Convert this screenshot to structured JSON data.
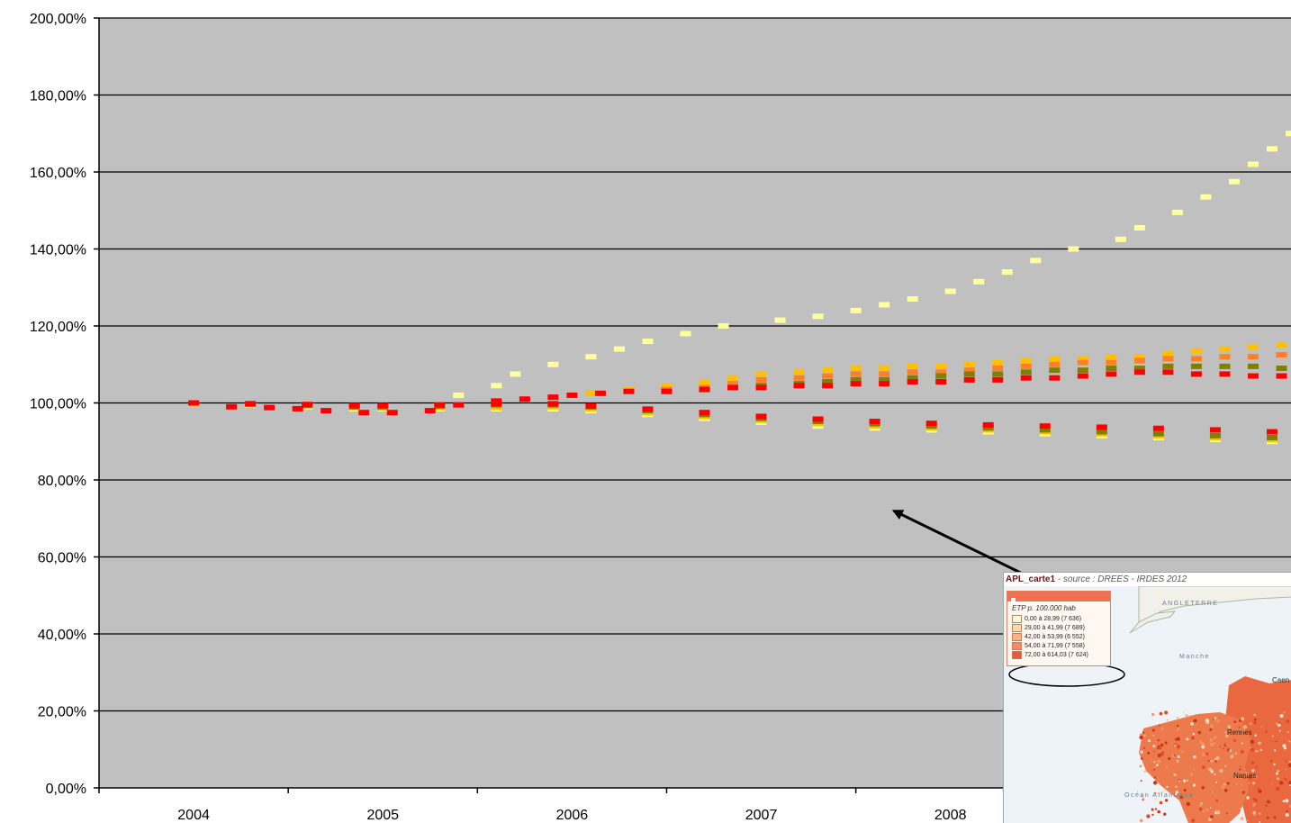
{
  "chart_data": {
    "type": "scatter",
    "title": "",
    "xlabel": "",
    "ylabel": "",
    "x_range": [
      2003.5,
      2009.8
    ],
    "ylim": [
      0,
      200
    ],
    "y_ticks": [
      0,
      20,
      40,
      60,
      80,
      100,
      120,
      140,
      160,
      180,
      200
    ],
    "y_tick_labels": [
      "0,00%",
      "20,00%",
      "40,00%",
      "60,00%",
      "80,00%",
      "100,00%",
      "120,00%",
      "140,00%",
      "160,00%",
      "180,00%",
      "200,00%"
    ],
    "x_tick_labels": [
      "2004",
      "2005",
      "2006",
      "2007",
      "2008"
    ],
    "x_tick_values": [
      2004,
      2005,
      2006,
      2007,
      2008
    ],
    "grid": "horizontal",
    "plot_background": "#c0c0c0",
    "series": [
      {
        "color": "#ffffa0",
        "points": [
          [
            2005.4,
            102
          ],
          [
            2005.6,
            104.5
          ],
          [
            2005.7,
            107.5
          ],
          [
            2005.9,
            110
          ],
          [
            2006.1,
            112
          ],
          [
            2006.25,
            114
          ],
          [
            2006.4,
            116
          ],
          [
            2006.6,
            118
          ],
          [
            2006.8,
            120
          ],
          [
            2007.1,
            121.5
          ],
          [
            2007.3,
            122.5
          ],
          [
            2007.5,
            124
          ],
          [
            2007.65,
            125.5
          ],
          [
            2007.8,
            127
          ],
          [
            2008.0,
            129
          ],
          [
            2008.15,
            131.5
          ],
          [
            2008.3,
            134
          ],
          [
            2008.45,
            137
          ],
          [
            2008.65,
            140
          ],
          [
            2008.9,
            142.5
          ],
          [
            2009.0,
            145.5
          ],
          [
            2009.2,
            149.5
          ],
          [
            2009.35,
            153.5
          ],
          [
            2009.5,
            157.5
          ],
          [
            2009.6,
            162
          ],
          [
            2009.7,
            166
          ],
          [
            2009.8,
            170
          ],
          [
            2009.95,
            173.5
          ]
        ]
      },
      {
        "color": "#ffc000",
        "points": [
          [
            2006.1,
            102.5
          ],
          [
            2006.3,
            103.5
          ],
          [
            2006.5,
            104.5
          ],
          [
            2006.7,
            105.5
          ],
          [
            2006.85,
            106.5
          ],
          [
            2007.0,
            107.5
          ],
          [
            2007.2,
            108
          ],
          [
            2007.35,
            108.5
          ],
          [
            2007.5,
            109
          ],
          [
            2007.65,
            109
          ],
          [
            2007.8,
            109.5
          ],
          [
            2007.95,
            109.5
          ],
          [
            2008.1,
            110
          ],
          [
            2008.25,
            110.5
          ],
          [
            2008.4,
            111
          ],
          [
            2008.55,
            111.5
          ],
          [
            2008.7,
            111.5
          ],
          [
            2008.85,
            112
          ],
          [
            2009.0,
            112
          ],
          [
            2009.15,
            113
          ],
          [
            2009.3,
            113.5
          ],
          [
            2009.45,
            114
          ],
          [
            2009.6,
            114.5
          ],
          [
            2009.75,
            115
          ],
          [
            2009.95,
            115.5
          ]
        ]
      },
      {
        "color": "#ff7f27",
        "points": [
          [
            2006.3,
            103
          ],
          [
            2006.5,
            103.5
          ],
          [
            2006.7,
            104
          ],
          [
            2006.85,
            105
          ],
          [
            2007.0,
            106
          ],
          [
            2007.2,
            106.5
          ],
          [
            2007.35,
            107
          ],
          [
            2007.5,
            107.5
          ],
          [
            2007.65,
            107.5
          ],
          [
            2007.8,
            108
          ],
          [
            2007.95,
            108
          ],
          [
            2008.1,
            108.5
          ],
          [
            2008.25,
            109
          ],
          [
            2008.4,
            109.5
          ],
          [
            2008.55,
            110
          ],
          [
            2008.7,
            110.5
          ],
          [
            2008.85,
            110.5
          ],
          [
            2009.0,
            111
          ],
          [
            2009.15,
            111.5
          ],
          [
            2009.3,
            111.5
          ],
          [
            2009.45,
            112
          ],
          [
            2009.6,
            112
          ],
          [
            2009.75,
            112.5
          ],
          [
            2009.95,
            112.5
          ]
        ]
      },
      {
        "color": "#808000",
        "points": [
          [
            2006.5,
            103
          ],
          [
            2006.7,
            103.5
          ],
          [
            2006.85,
            104
          ],
          [
            2007.0,
            104.5
          ],
          [
            2007.2,
            105
          ],
          [
            2007.35,
            105.5
          ],
          [
            2007.5,
            106
          ],
          [
            2007.65,
            106
          ],
          [
            2007.8,
            106.5
          ],
          [
            2007.95,
            107
          ],
          [
            2008.1,
            107.5
          ],
          [
            2008.25,
            107.5
          ],
          [
            2008.4,
            108
          ],
          [
            2008.55,
            108.5
          ],
          [
            2008.7,
            108.5
          ],
          [
            2008.85,
            109
          ],
          [
            2009.0,
            109
          ],
          [
            2009.15,
            109.5
          ],
          [
            2009.3,
            109.5
          ],
          [
            2009.45,
            109.5
          ],
          [
            2009.6,
            109.5
          ],
          [
            2009.75,
            109
          ],
          [
            2009.95,
            109
          ]
        ]
      },
      {
        "color": "#ff0000",
        "points": [
          [
            2006.0,
            102
          ],
          [
            2006.15,
            102.5
          ],
          [
            2006.3,
            103
          ],
          [
            2006.5,
            103
          ],
          [
            2006.7,
            103.5
          ],
          [
            2006.85,
            104
          ],
          [
            2007.0,
            104
          ],
          [
            2007.2,
            104.5
          ],
          [
            2007.35,
            104.5
          ],
          [
            2007.5,
            105
          ],
          [
            2007.65,
            105
          ],
          [
            2007.8,
            105.5
          ],
          [
            2007.95,
            105.5
          ],
          [
            2008.1,
            106
          ],
          [
            2008.25,
            106
          ],
          [
            2008.4,
            106.5
          ],
          [
            2008.55,
            106.5
          ],
          [
            2008.7,
            107
          ],
          [
            2008.85,
            107.5
          ],
          [
            2009.0,
            108
          ],
          [
            2009.15,
            108
          ],
          [
            2009.3,
            107.5
          ],
          [
            2009.45,
            107.5
          ],
          [
            2009.6,
            107
          ],
          [
            2009.75,
            107
          ],
          [
            2009.95,
            107
          ]
        ]
      },
      {
        "color": "#ffff80",
        "points": [
          [
            2004.0,
            99.8
          ],
          [
            2004.3,
            99.5
          ],
          [
            2004.6,
            99
          ],
          [
            2004.85,
            98.5
          ],
          [
            2005.0,
            98.5
          ],
          [
            2005.3,
            98.5
          ],
          [
            2005.6,
            98.5
          ],
          [
            2005.9,
            98.5
          ],
          [
            2006.1,
            98
          ],
          [
            2006.4,
            97
          ],
          [
            2006.7,
            96
          ],
          [
            2007.0,
            95
          ],
          [
            2007.3,
            94
          ],
          [
            2007.6,
            93.5
          ],
          [
            2007.9,
            93
          ],
          [
            2008.2,
            92.5
          ],
          [
            2008.5,
            92
          ],
          [
            2008.8,
            91.5
          ],
          [
            2009.1,
            91
          ],
          [
            2009.4,
            90.5
          ],
          [
            2009.7,
            90
          ],
          [
            2009.95,
            89.5
          ]
        ]
      },
      {
        "color": "#ffc000",
        "points": [
          [
            2004.0,
            99.9
          ],
          [
            2004.3,
            99.6
          ],
          [
            2004.6,
            99.2
          ],
          [
            2004.85,
            98.8
          ],
          [
            2005.0,
            98.7
          ],
          [
            2005.3,
            98.8
          ],
          [
            2005.6,
            98.9
          ],
          [
            2005.9,
            99
          ],
          [
            2006.1,
            98.5
          ],
          [
            2006.4,
            97.5
          ],
          [
            2006.7,
            96.5
          ],
          [
            2007.0,
            95.5
          ],
          [
            2007.3,
            94.7
          ],
          [
            2007.6,
            94
          ],
          [
            2007.9,
            93.5
          ],
          [
            2008.2,
            93
          ],
          [
            2008.5,
            92.5
          ],
          [
            2008.8,
            92
          ],
          [
            2009.1,
            91.5
          ],
          [
            2009.4,
            91
          ],
          [
            2009.7,
            90.5
          ],
          [
            2009.95,
            90
          ]
        ]
      },
      {
        "color": "#808000",
        "points": [
          [
            2004.0,
            100
          ],
          [
            2004.3,
            99.7
          ],
          [
            2004.6,
            99.4
          ],
          [
            2004.85,
            99
          ],
          [
            2005.0,
            99
          ],
          [
            2005.3,
            99.2
          ],
          [
            2005.6,
            99.5
          ],
          [
            2005.9,
            99.5
          ],
          [
            2006.1,
            99
          ],
          [
            2006.4,
            98
          ],
          [
            2006.7,
            97
          ],
          [
            2007.0,
            96
          ],
          [
            2007.3,
            95.2
          ],
          [
            2007.6,
            94.6
          ],
          [
            2007.9,
            94
          ],
          [
            2008.2,
            93.5
          ],
          [
            2008.5,
            93
          ],
          [
            2008.8,
            92.5
          ],
          [
            2009.1,
            92
          ],
          [
            2009.4,
            91.5
          ],
          [
            2009.7,
            91
          ],
          [
            2009.95,
            90.5
          ]
        ]
      },
      {
        "color": "#ff0000",
        "points": [
          [
            2004.0,
            100
          ],
          [
            2004.3,
            99.8
          ],
          [
            2004.6,
            99.6
          ],
          [
            2004.85,
            99.3
          ],
          [
            2005.0,
            99.3
          ],
          [
            2005.3,
            99.5
          ],
          [
            2005.6,
            99.8
          ],
          [
            2005.9,
            99.8
          ],
          [
            2006.1,
            99.2
          ],
          [
            2006.4,
            98.4
          ],
          [
            2006.7,
            97.5
          ],
          [
            2007.0,
            96.5
          ],
          [
            2007.3,
            95.8
          ],
          [
            2007.6,
            95.2
          ],
          [
            2007.9,
            94.7
          ],
          [
            2008.2,
            94.3
          ],
          [
            2008.5,
            94
          ],
          [
            2008.8,
            93.7
          ],
          [
            2009.1,
            93.4
          ],
          [
            2009.4,
            93
          ],
          [
            2009.7,
            92.5
          ],
          [
            2009.95,
            92
          ]
        ]
      },
      {
        "color": "#ff0000",
        "points": [
          [
            2004.2,
            99
          ],
          [
            2004.4,
            98.8
          ],
          [
            2004.55,
            98.5
          ],
          [
            2004.7,
            98
          ],
          [
            2004.9,
            97.5
          ],
          [
            2005.05,
            97.5
          ],
          [
            2005.25,
            98
          ],
          [
            2005.4,
            99.5
          ],
          [
            2005.6,
            100.5
          ],
          [
            2005.75,
            101
          ],
          [
            2005.9,
            101.5
          ]
        ]
      }
    ]
  },
  "annotation": {
    "arrow_from": [
      2009.2,
      36
    ],
    "arrow_to": [
      2007.7,
      72
    ],
    "color": "#000000"
  },
  "inset": {
    "title": "APL_carte1",
    "source_prefix": " - source : ",
    "source": "DREES - IRDES 2012",
    "legend_title": "ETP p. 100.000 hab",
    "legend_items": [
      {
        "label": "0,00 à 28,99 (7 636)",
        "color": "#fff8d8"
      },
      {
        "label": "29,00 à 41,99 (7 689)",
        "color": "#ffd9a8"
      },
      {
        "label": "42,00 à 53,99 (6 552)",
        "color": "#ffb080"
      },
      {
        "label": "54,00 à 71,99 (7 558)",
        "color": "#f98a5c"
      },
      {
        "label": "72,00 à 614,03 (7 624)",
        "color": "#ea5a3a"
      }
    ],
    "map_labels": {
      "angleterre": "ANGLETERRE",
      "manche": "Manche",
      "caen": "Caen",
      "rennes": "Rennes",
      "nantes": "Nantes",
      "ocean": "Océan Atlantique"
    }
  }
}
